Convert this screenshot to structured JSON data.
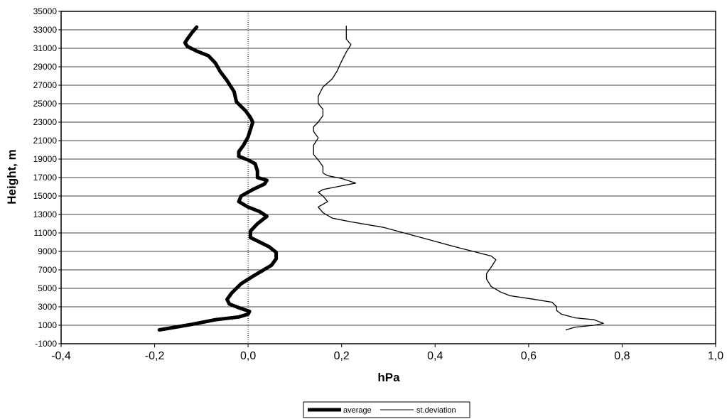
{
  "chart_data": {
    "type": "line",
    "xlabel": "hPa",
    "ylabel": "Height, m",
    "xlim": [
      -0.4,
      1.0
    ],
    "ylim": [
      -1000,
      35000
    ],
    "x_ticks": [
      -0.4,
      -0.2,
      0.0,
      0.2,
      0.4,
      0.6,
      0.8,
      1.0
    ],
    "x_tick_labels": [
      "-0,4",
      "-0,2",
      "0,0",
      "0,2",
      "0,4",
      "0,6",
      "0,8",
      "1,0"
    ],
    "y_ticks": [
      -1000,
      1000,
      3000,
      5000,
      7000,
      9000,
      11000,
      13000,
      15000,
      17000,
      19000,
      21000,
      23000,
      25000,
      27000,
      29000,
      31000,
      33000,
      35000
    ],
    "y_tick_labels": [
      "-1000",
      "1000",
      "3000",
      "5000",
      "7000",
      "9000",
      "11000",
      "13000",
      "15000",
      "17000",
      "19000",
      "21000",
      "23000",
      "25000",
      "27000",
      "29000",
      "31000",
      "33000",
      "35000"
    ],
    "grid": "horizontal",
    "legend_position": "bottom",
    "series": [
      {
        "name": "average",
        "color": "#000000",
        "style": "thick",
        "points": [
          [
            -0.19,
            500
          ],
          [
            -0.12,
            1100
          ],
          [
            -0.07,
            1600
          ],
          [
            -0.02,
            1900
          ],
          [
            0.0,
            2200
          ],
          [
            0.003,
            2500
          ],
          [
            -0.02,
            2900
          ],
          [
            -0.04,
            3300
          ],
          [
            -0.045,
            3800
          ],
          [
            -0.035,
            4500
          ],
          [
            -0.015,
            5500
          ],
          [
            0.01,
            6300
          ],
          [
            0.03,
            6900
          ],
          [
            0.05,
            7500
          ],
          [
            0.06,
            8200
          ],
          [
            0.06,
            8900
          ],
          [
            0.045,
            9500
          ],
          [
            0.025,
            10000
          ],
          [
            0.005,
            10500
          ],
          [
            0.005,
            11200
          ],
          [
            0.02,
            12000
          ],
          [
            0.04,
            12800
          ],
          [
            0.025,
            13300
          ],
          [
            0.0,
            13800
          ],
          [
            -0.02,
            14400
          ],
          [
            -0.015,
            15000
          ],
          [
            0.01,
            15700
          ],
          [
            0.035,
            16300
          ],
          [
            0.04,
            16700
          ],
          [
            0.02,
            17000
          ],
          [
            0.02,
            17700
          ],
          [
            0.015,
            18500
          ],
          [
            0.0,
            18900
          ],
          [
            -0.02,
            19300
          ],
          [
            -0.02,
            19800
          ],
          [
            -0.01,
            20500
          ],
          [
            0.0,
            21400
          ],
          [
            0.005,
            22200
          ],
          [
            0.01,
            23000
          ],
          [
            0.005,
            23500
          ],
          [
            -0.005,
            24200
          ],
          [
            -0.025,
            25200
          ],
          [
            -0.03,
            26300
          ],
          [
            -0.045,
            27500
          ],
          [
            -0.06,
            28500
          ],
          [
            -0.07,
            29400
          ],
          [
            -0.085,
            30200
          ],
          [
            -0.11,
            30700
          ],
          [
            -0.13,
            31200
          ],
          [
            -0.135,
            31600
          ],
          [
            -0.13,
            32000
          ],
          [
            -0.12,
            32700
          ],
          [
            -0.11,
            33300
          ]
        ]
      },
      {
        "name": "st.deviation",
        "color": "#000000",
        "style": "thin",
        "points": [
          [
            0.68,
            500
          ],
          [
            0.7,
            800
          ],
          [
            0.74,
            1000
          ],
          [
            0.76,
            1200
          ],
          [
            0.74,
            1600
          ],
          [
            0.7,
            1800
          ],
          [
            0.67,
            2200
          ],
          [
            0.66,
            2600
          ],
          [
            0.66,
            3000
          ],
          [
            0.65,
            3500
          ],
          [
            0.6,
            3900
          ],
          [
            0.56,
            4200
          ],
          [
            0.54,
            4600
          ],
          [
            0.52,
            5200
          ],
          [
            0.51,
            6000
          ],
          [
            0.51,
            6600
          ],
          [
            0.52,
            7300
          ],
          [
            0.53,
            8100
          ],
          [
            0.52,
            8500
          ],
          [
            0.45,
            9400
          ],
          [
            0.37,
            10500
          ],
          [
            0.29,
            11600
          ],
          [
            0.22,
            12200
          ],
          [
            0.18,
            12600
          ],
          [
            0.16,
            13200
          ],
          [
            0.15,
            13800
          ],
          [
            0.17,
            14400
          ],
          [
            0.16,
            15000
          ],
          [
            0.15,
            15400
          ],
          [
            0.16,
            15700
          ],
          [
            0.19,
            16000
          ],
          [
            0.23,
            16400
          ],
          [
            0.2,
            16900
          ],
          [
            0.17,
            17200
          ],
          [
            0.16,
            17500
          ],
          [
            0.16,
            18200
          ],
          [
            0.15,
            18900
          ],
          [
            0.14,
            19500
          ],
          [
            0.14,
            20500
          ],
          [
            0.15,
            21300
          ],
          [
            0.14,
            22000
          ],
          [
            0.14,
            22500
          ],
          [
            0.15,
            23000
          ],
          [
            0.16,
            23700
          ],
          [
            0.16,
            24400
          ],
          [
            0.15,
            25000
          ],
          [
            0.15,
            25800
          ],
          [
            0.16,
            26800
          ],
          [
            0.18,
            27700
          ],
          [
            0.19,
            28500
          ],
          [
            0.2,
            29600
          ],
          [
            0.21,
            30600
          ],
          [
            0.22,
            31400
          ],
          [
            0.21,
            32000
          ],
          [
            0.21,
            32800
          ],
          [
            0.21,
            33400
          ]
        ]
      }
    ]
  },
  "legend": {
    "items": [
      {
        "label": "average"
      },
      {
        "label": "st.deviation"
      }
    ]
  }
}
